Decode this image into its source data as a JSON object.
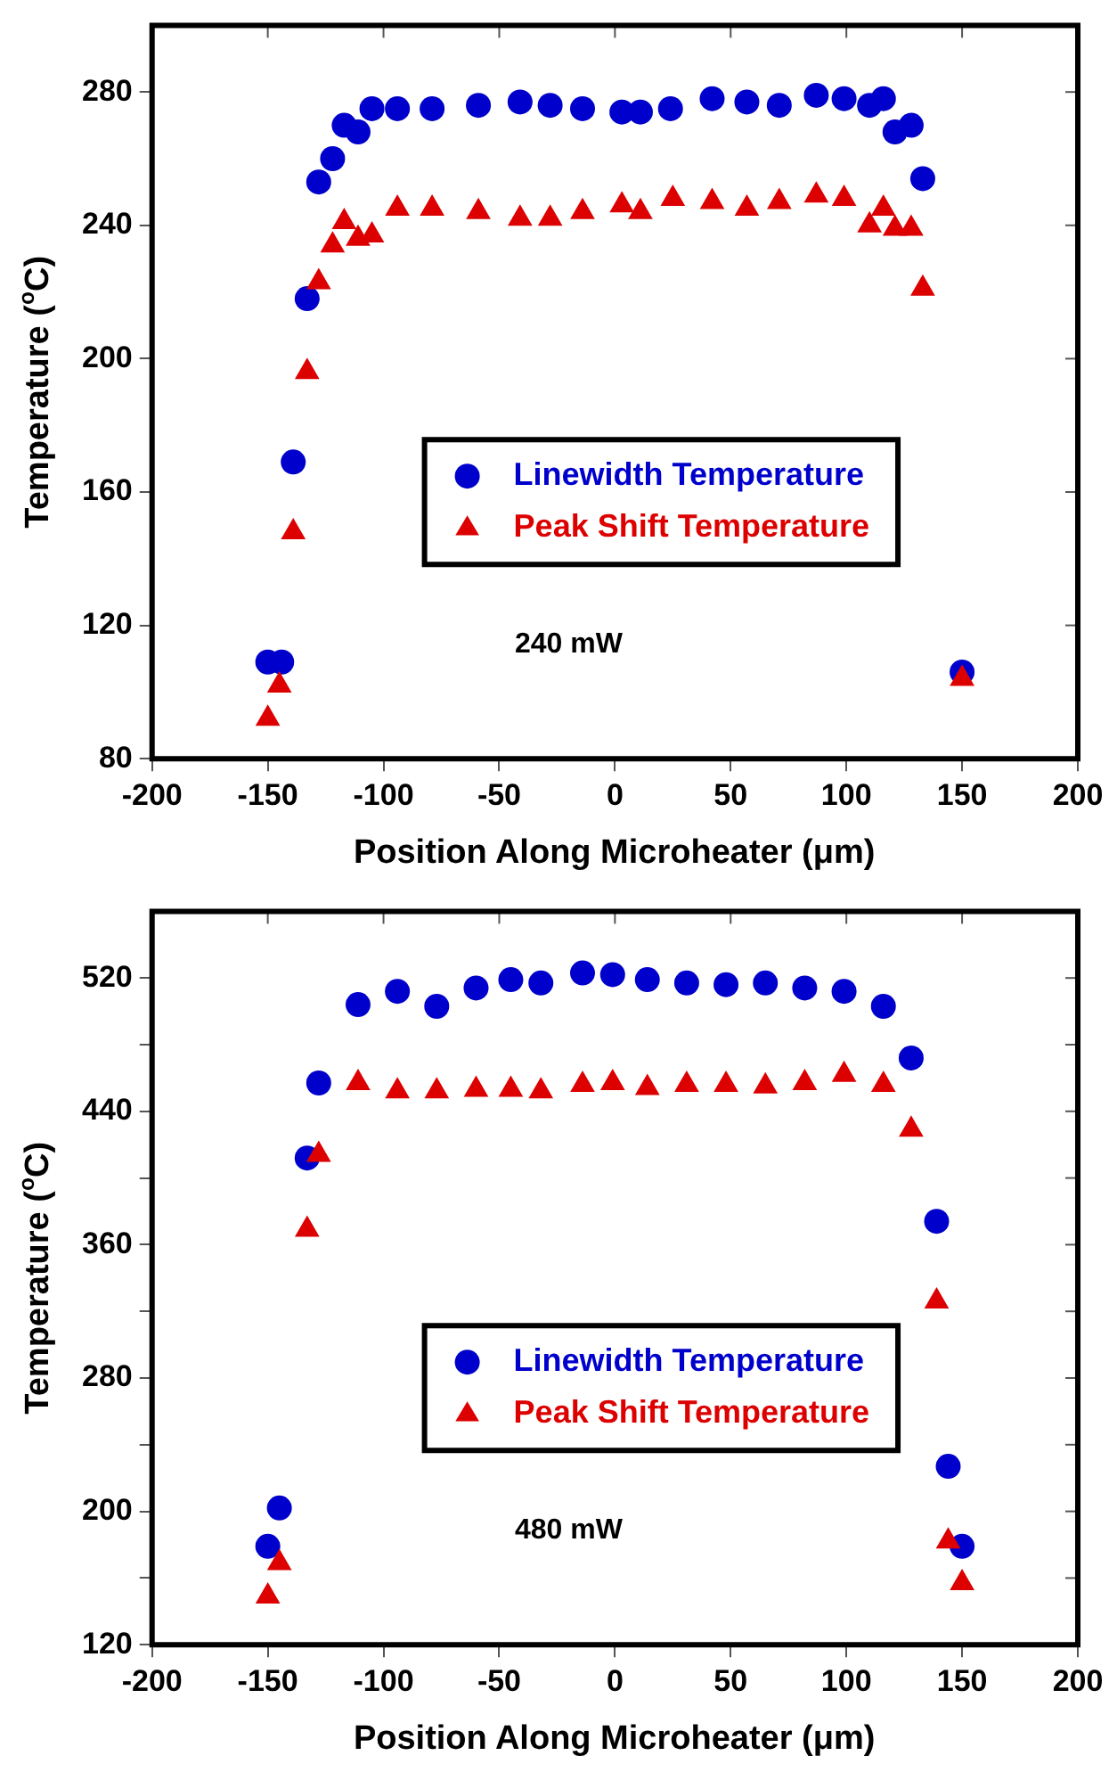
{
  "chart_data": [
    {
      "type": "scatter",
      "xlabel": "Position Along Microheater (μm)",
      "ylabel": "Temperature ($^{o}$C)",
      "xlim": [
        -200,
        200
      ],
      "xticks": [
        -200,
        -150,
        -100,
        -50,
        0,
        50,
        100,
        150,
        200
      ],
      "ylim": [
        80,
        300
      ],
      "yticks": [
        80,
        120,
        160,
        200,
        240,
        280
      ],
      "legend": "center",
      "annotations": [
        "240 mW"
      ],
      "series": [
        {
          "name": "Linewidth Temperature",
          "color": "#0000cc",
          "marker": "circle",
          "x": [
            -150,
            -144,
            -139,
            -133,
            -128,
            -122,
            -117,
            -111,
            -105,
            -94,
            -79,
            -59,
            -41,
            -28,
            -14,
            3,
            11,
            24,
            42,
            57,
            71,
            87,
            99,
            110,
            116,
            121,
            128,
            133,
            150
          ],
          "values": [
            109,
            109,
            169,
            218,
            253,
            260,
            270,
            268,
            275,
            275,
            275,
            276,
            277,
            276,
            275,
            274,
            274,
            275,
            278,
            277,
            276,
            279,
            278,
            276,
            278,
            268,
            270,
            254,
            106
          ]
        },
        {
          "name": "Peak Shift Temperature",
          "color": "#dd0000",
          "marker": "triangle",
          "x": [
            -150,
            -145,
            -139,
            -133,
            -128,
            -122,
            -117,
            -111,
            -105,
            -94,
            -79,
            -59,
            -41,
            -28,
            -14,
            3,
            11,
            25,
            42,
            57,
            71,
            87,
            99,
            110,
            116,
            121,
            128,
            133,
            150
          ],
          "values": [
            92,
            102,
            148,
            196,
            223,
            234,
            241,
            236,
            237,
            245,
            245,
            244,
            242,
            242,
            244,
            246,
            244,
            248,
            247,
            245,
            247,
            249,
            248,
            240,
            245,
            239,
            239,
            221,
            104
          ]
        }
      ]
    },
    {
      "type": "scatter",
      "xlabel": "Position Along Microheater (μm)",
      "ylabel": "Temperature ($^{o}$C)",
      "xlim": [
        -200,
        200
      ],
      "xticks": [
        -200,
        -150,
        -100,
        -50,
        0,
        50,
        100,
        150,
        200
      ],
      "ylim": [
        120,
        560
      ],
      "yticks": [
        120,
        {
          "value": 160,
          "label": null
        },
        200,
        {
          "value": 240,
          "label": null
        },
        280,
        {
          "value": 320,
          "label": null
        },
        360,
        {
          "value": 400,
          "label": null
        },
        440,
        {
          "value": 480,
          "label": null
        },
        520
      ],
      "legend": "center",
      "annotations": [
        "480 mW"
      ],
      "series": [
        {
          "name": "Linewidth Temperature",
          "color": "#0000cc",
          "marker": "circle",
          "x": [
            -150,
            -145,
            -133,
            -128,
            -111,
            -94,
            -77,
            -60,
            -45,
            -32,
            -14,
            -1,
            14,
            31,
            48,
            65,
            82,
            99,
            116,
            128,
            139,
            144,
            150
          ],
          "values": [
            179,
            202,
            412,
            457,
            504,
            512,
            503,
            514,
            519,
            517,
            523,
            522,
            519,
            517,
            516,
            517,
            514,
            512,
            503,
            472,
            374,
            227,
            179
          ]
        },
        {
          "name": "Peak Shift Temperature",
          "color": "#dd0000",
          "marker": "triangle",
          "x": [
            -150,
            -145,
            -133,
            -128,
            -111,
            -94,
            -77,
            -60,
            -45,
            -32,
            -14,
            -1,
            14,
            31,
            48,
            65,
            82,
            99,
            116,
            128,
            139,
            144,
            150
          ],
          "values": [
            149,
            169,
            369,
            414,
            457,
            452,
            452,
            453,
            453,
            452,
            456,
            457,
            454,
            456,
            456,
            455,
            457,
            462,
            456,
            429,
            326,
            182,
            157
          ]
        }
      ]
    }
  ]
}
